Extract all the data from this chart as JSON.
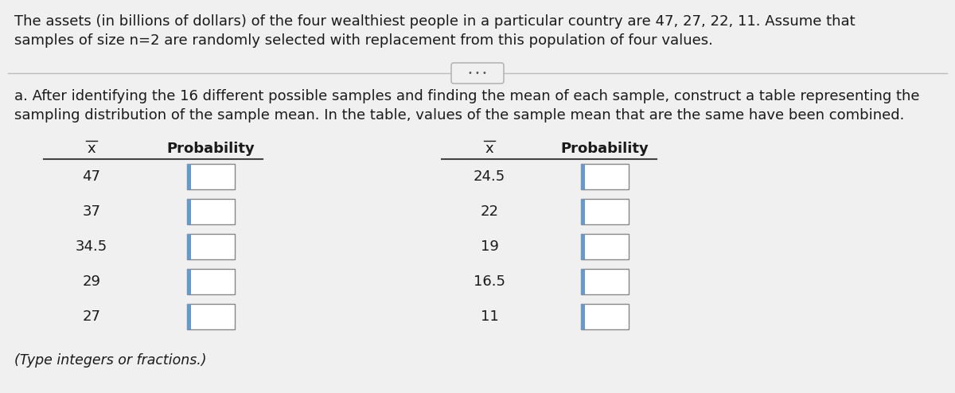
{
  "bg_color": "#d8d8d8",
  "panel_color": "#f0f0f0",
  "header_text_line1": "The assets (in billions of dollars) of the four wealthiest people in a particular country are 47, 27, 22, 11. Assume that",
  "header_text_line2": "samples of size n​=​2 are randomly selected with replacement from this population of four values.",
  "part_a_text_line1": "a. After identifying the 16 different possible samples and finding the mean of each sample, construct a table representing the",
  "part_a_text_line2": "sampling distribution of the sample mean. In the table, values of the sample mean that are the same have been combined.",
  "col_header_x": "x",
  "col_header_prob": "Probability",
  "left_x_values": [
    "47",
    "37",
    "34.5",
    "29",
    "27"
  ],
  "right_x_values": [
    "24.5",
    "22",
    "19",
    "16.5",
    "11"
  ],
  "footer_note": "(Type integers or fractions.)",
  "dots_button": "• • •",
  "font_family": "DejaVu Sans",
  "font_size_header": 13.0,
  "font_size_body": 13.0,
  "font_size_col_header": 13.0,
  "font_size_footer": 12.5,
  "text_color": "#1a1a1a",
  "line_color": "#444444",
  "box_color": "#ffffff",
  "box_border_color": "#888888",
  "box_left_bar_color": "#6699cc",
  "rule_color": "#bbbbbb",
  "btn_border_color": "#aaaaaa",
  "btn_bg_color": "#f0f0f0"
}
